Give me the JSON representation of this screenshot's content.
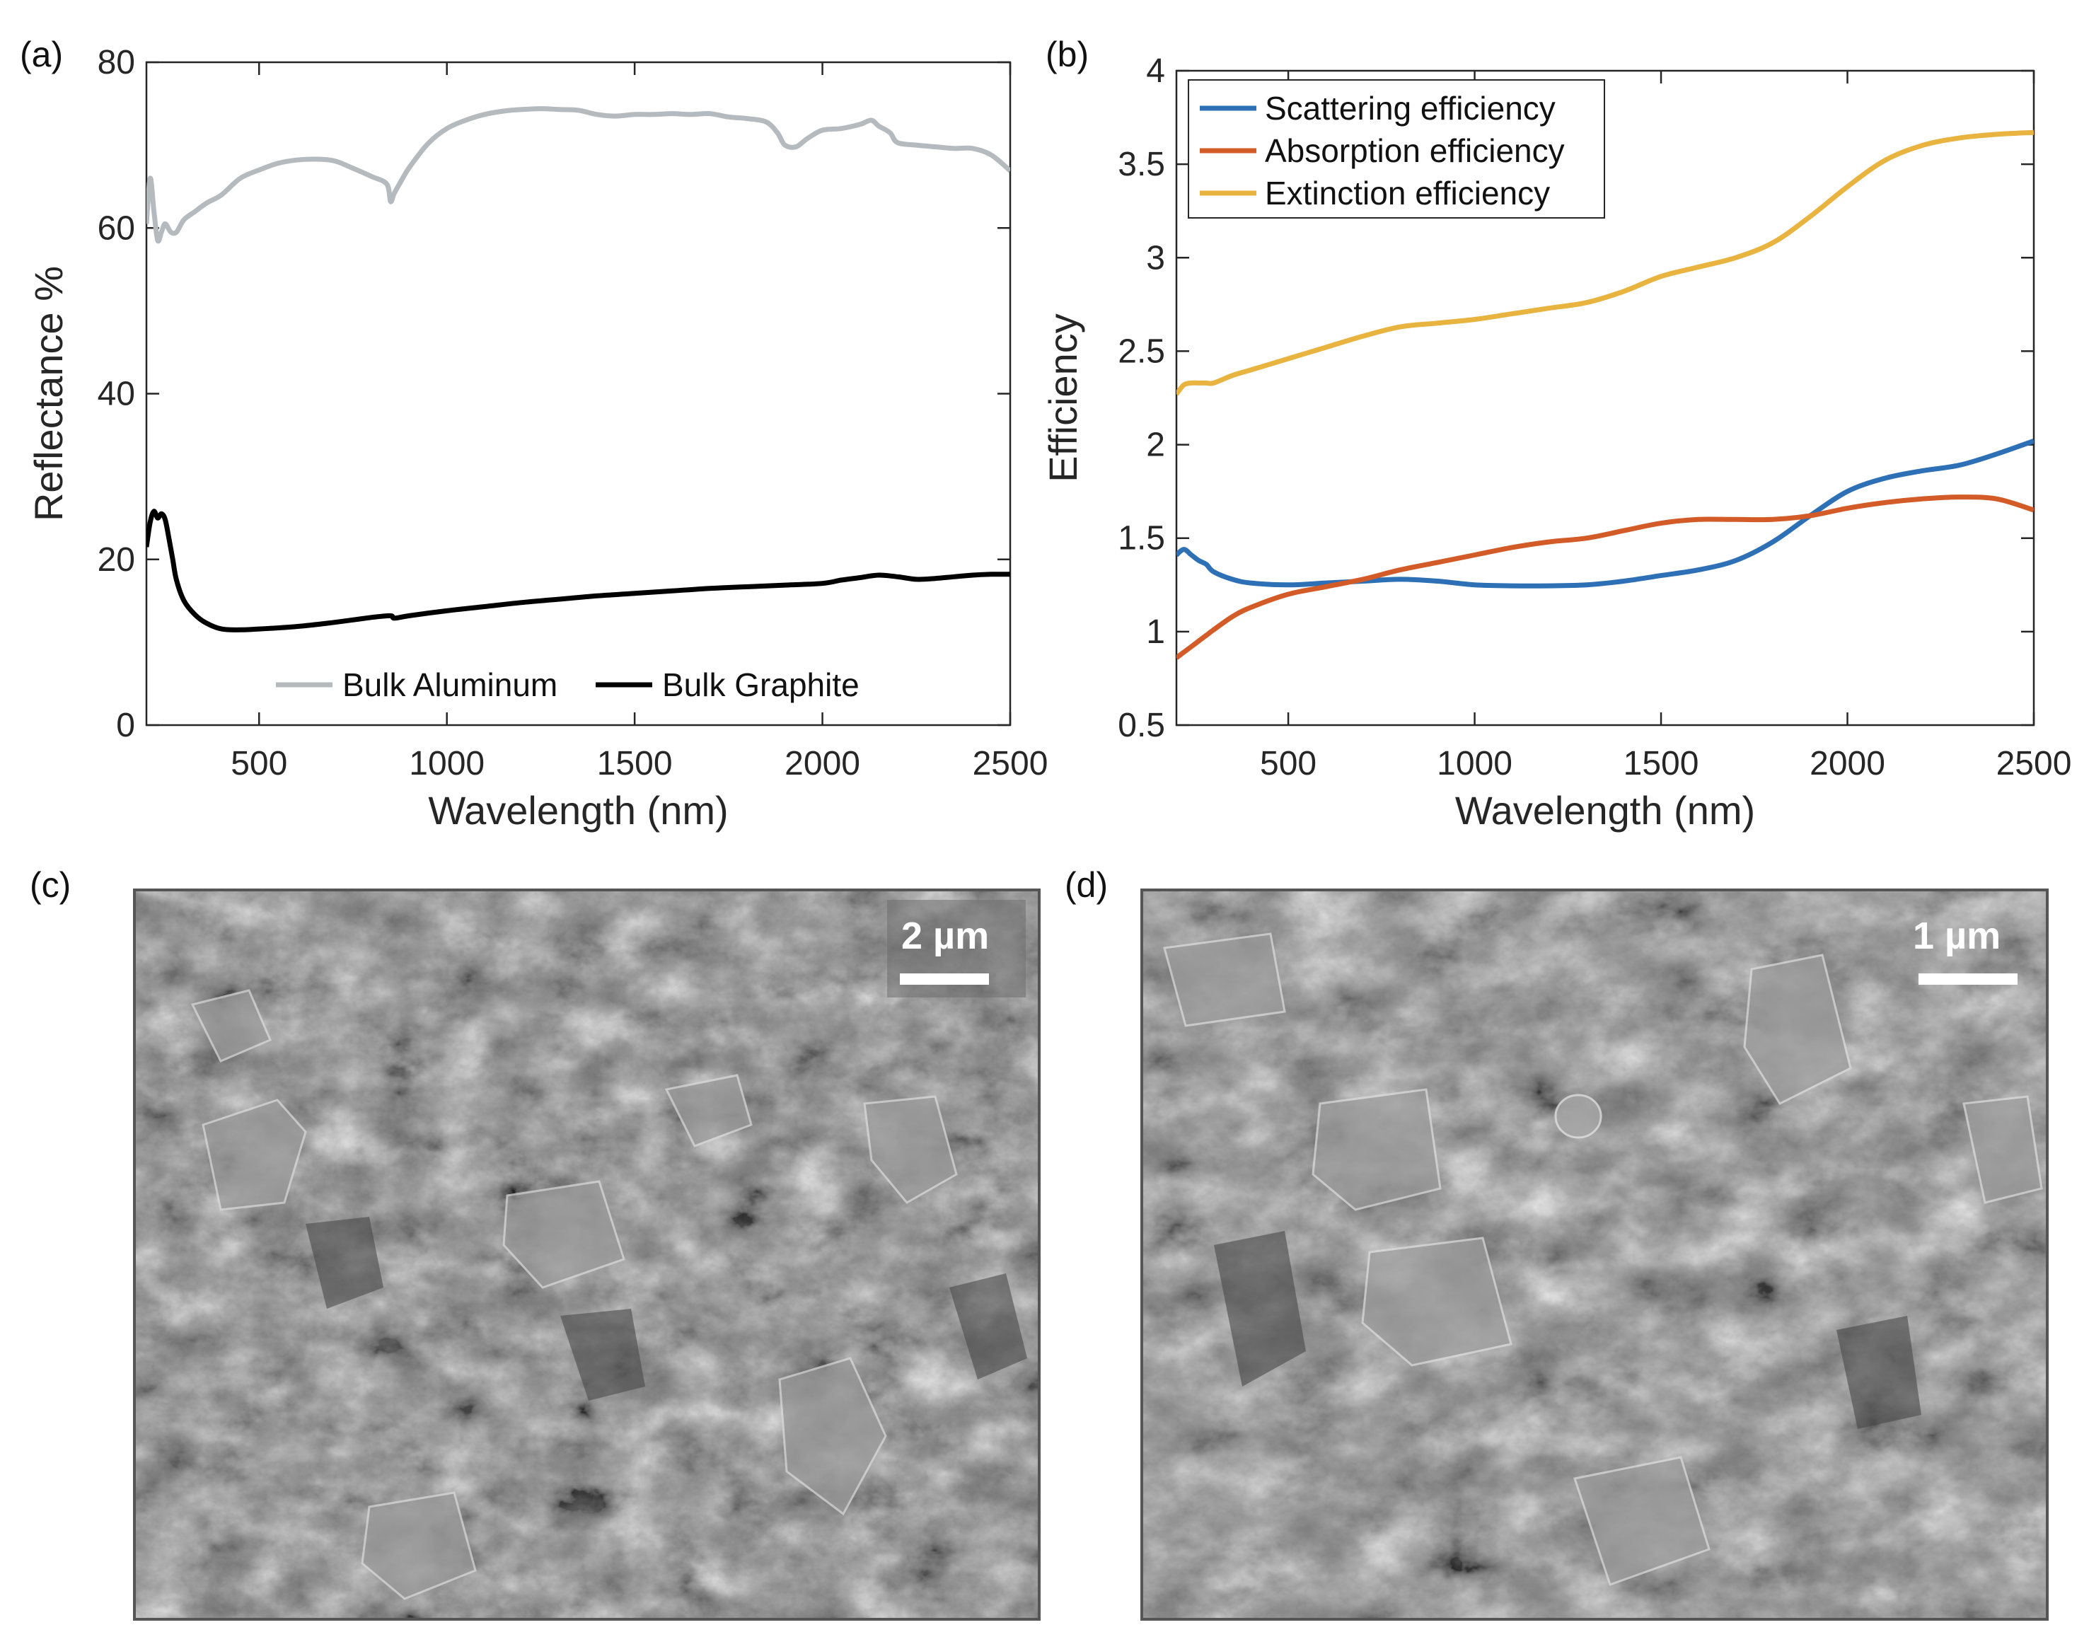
{
  "panels": {
    "a": "(a)",
    "b": "(b)",
    "c": "(c)",
    "d": "(d)"
  },
  "chart_data": [
    {
      "id": "a",
      "type": "line",
      "title": "",
      "xlabel": "Wavelength (nm)",
      "ylabel": "Reflectance %",
      "xlim": [
        200,
        2500
      ],
      "ylim": [
        0,
        80
      ],
      "xticks": [
        500,
        1000,
        1500,
        2000,
        2500
      ],
      "yticks": [
        0,
        20,
        40,
        60,
        80
      ],
      "grid": false,
      "legend_position": "bottom",
      "series": [
        {
          "name": "Bulk Aluminum",
          "color": "#b4babe",
          "x": [
            200,
            210,
            220,
            230,
            240,
            250,
            265,
            280,
            300,
            330,
            360,
            400,
            450,
            500,
            550,
            600,
            650,
            700,
            750,
            800,
            840,
            850,
            860,
            880,
            900,
            950,
            1000,
            1050,
            1100,
            1150,
            1200,
            1250,
            1300,
            1350,
            1400,
            1450,
            1500,
            1550,
            1600,
            1650,
            1700,
            1750,
            1800,
            1850,
            1880,
            1900,
            1930,
            1960,
            2000,
            2050,
            2100,
            2130,
            2150,
            2180,
            2200,
            2250,
            2300,
            2350,
            2400,
            2450,
            2500
          ],
          "y": [
            60.5,
            66,
            62,
            58.5,
            59.5,
            60.5,
            59.5,
            59.5,
            61,
            62,
            63,
            64,
            66,
            67,
            67.8,
            68.2,
            68.3,
            68.1,
            67.2,
            66.2,
            65.3,
            63.2,
            64.2,
            65.8,
            67.3,
            70.2,
            72,
            73,
            73.7,
            74.1,
            74.3,
            74.4,
            74.3,
            74.2,
            73.7,
            73.5,
            73.7,
            73.7,
            73.8,
            73.7,
            73.8,
            73.4,
            73.2,
            72.8,
            71.5,
            70,
            69.8,
            70.8,
            71.8,
            72,
            72.5,
            73,
            72.3,
            71.5,
            70.3,
            70,
            69.8,
            69.6,
            69.6,
            68.8,
            66.9
          ]
        },
        {
          "name": "Bulk Graphite",
          "color": "#000000",
          "x": [
            200,
            210,
            220,
            230,
            240,
            250,
            260,
            270,
            280,
            300,
            330,
            360,
            400,
            450,
            500,
            600,
            700,
            800,
            850,
            860,
            900,
            1000,
            1100,
            1200,
            1300,
            1400,
            1500,
            1600,
            1700,
            1800,
            1900,
            2000,
            2050,
            2100,
            2150,
            2200,
            2250,
            2300,
            2350,
            2400,
            2450,
            2500
          ],
          "y": [
            21.5,
            24.5,
            25.8,
            25,
            25.5,
            24.8,
            22.5,
            20,
            17.5,
            15,
            13.3,
            12.3,
            11.6,
            11.5,
            11.6,
            11.9,
            12.4,
            13,
            13.2,
            12.9,
            13.2,
            13.8,
            14.3,
            14.8,
            15.2,
            15.6,
            15.9,
            16.2,
            16.5,
            16.7,
            16.9,
            17.1,
            17.5,
            17.8,
            18.1,
            17.9,
            17.6,
            17.7,
            17.9,
            18.1,
            18.2,
            18.2
          ]
        }
      ]
    },
    {
      "id": "b",
      "type": "line",
      "title": "",
      "xlabel": "Wavelength (nm)",
      "ylabel": "Efficiency",
      "xlim": [
        200,
        2500
      ],
      "ylim": [
        0.5,
        4
      ],
      "xticks": [
        500,
        1000,
        1500,
        2000,
        2500
      ],
      "yticks": [
        0.5,
        1,
        1.5,
        2,
        2.5,
        3,
        3.5,
        4
      ],
      "ytick_labels": [
        "0.5",
        "1",
        "1.5",
        "2",
        "2.5",
        "3",
        "3.5",
        "4"
      ],
      "grid": false,
      "legend_position": "top-left",
      "series": [
        {
          "name": "Scattering efficiency",
          "color": "#2e70b6",
          "x": [
            200,
            220,
            240,
            260,
            280,
            300,
            350,
            400,
            500,
            600,
            700,
            800,
            900,
            1000,
            1100,
            1200,
            1300,
            1400,
            1500,
            1600,
            1700,
            1800,
            1900,
            2000,
            2100,
            2200,
            2300,
            2400,
            2500
          ],
          "y": [
            1.41,
            1.44,
            1.41,
            1.38,
            1.36,
            1.32,
            1.28,
            1.26,
            1.25,
            1.26,
            1.27,
            1.28,
            1.27,
            1.25,
            1.245,
            1.245,
            1.25,
            1.27,
            1.3,
            1.33,
            1.38,
            1.48,
            1.62,
            1.75,
            1.82,
            1.86,
            1.89,
            1.95,
            2.02
          ]
        },
        {
          "name": "Absorption efficiency",
          "color": "#d35b27",
          "x": [
            200,
            220,
            240,
            260,
            280,
            300,
            350,
            400,
            500,
            600,
            700,
            800,
            900,
            1000,
            1100,
            1200,
            1300,
            1400,
            1500,
            1600,
            1700,
            1800,
            1900,
            2000,
            2100,
            2200,
            2300,
            2400,
            2500
          ],
          "y": [
            0.86,
            0.89,
            0.92,
            0.95,
            0.98,
            1.01,
            1.08,
            1.13,
            1.2,
            1.24,
            1.28,
            1.33,
            1.37,
            1.41,
            1.45,
            1.48,
            1.5,
            1.54,
            1.58,
            1.6,
            1.6,
            1.6,
            1.62,
            1.66,
            1.69,
            1.71,
            1.72,
            1.71,
            1.65
          ]
        },
        {
          "name": "Extinction efficiency",
          "color": "#e8b33e",
          "x": [
            200,
            220,
            240,
            260,
            280,
            300,
            350,
            400,
            500,
            600,
            700,
            800,
            900,
            1000,
            1100,
            1200,
            1300,
            1400,
            1500,
            1600,
            1700,
            1800,
            1900,
            2000,
            2100,
            2200,
            2300,
            2400,
            2500
          ],
          "y": [
            2.27,
            2.32,
            2.33,
            2.33,
            2.33,
            2.33,
            2.37,
            2.4,
            2.46,
            2.52,
            2.58,
            2.63,
            2.65,
            2.67,
            2.7,
            2.73,
            2.76,
            2.82,
            2.9,
            2.95,
            3.0,
            3.08,
            3.22,
            3.38,
            3.52,
            3.6,
            3.64,
            3.66,
            3.67
          ]
        }
      ]
    }
  ],
  "sem_images": {
    "c": {
      "scalebar_label": "2 µm",
      "image_description_name": "graphite-flakes-sem-2um"
    },
    "d": {
      "scalebar_label": "1 µm",
      "image_description_name": "graphite-flakes-sem-1um"
    }
  }
}
